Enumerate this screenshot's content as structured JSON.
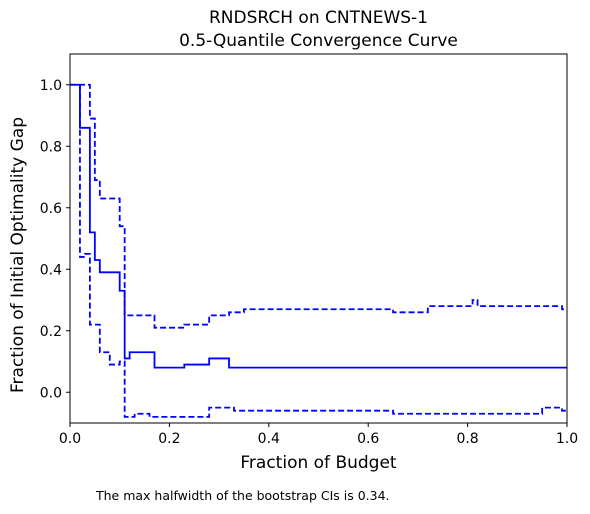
{
  "title_lines": [
    "RNDSRCH on CNTNEWS-1",
    "0.5-Quantile Convergence Curve"
  ],
  "footnote": "The max halfwidth of the bootstrap CIs is 0.34.",
  "colors": {
    "series": "#0000ff",
    "axis": "#000000",
    "background": "#ffffff"
  },
  "chart_data": {
    "type": "line",
    "title": "RNDSRCH on CNTNEWS-1\n0.5-Quantile Convergence Curve",
    "xlabel": "Fraction of Budget",
    "ylabel": "Fraction of Initial Optimality Gap",
    "xlim": [
      0,
      1
    ],
    "ylim": [
      -0.1,
      1.1
    ],
    "x_ticks": [
      0,
      0.2,
      0.4,
      0.6,
      0.8,
      1.0
    ],
    "x_tick_labels": [
      "0.0",
      "0.2",
      "0.4",
      "0.6",
      "0.8",
      "1.0"
    ],
    "y_ticks": [
      0,
      0.2,
      0.4,
      0.6,
      0.8,
      1.0
    ],
    "y_tick_labels": [
      "0.0",
      "0.2",
      "0.4",
      "0.6",
      "0.8",
      "1.0"
    ],
    "grid": false,
    "legend": "none",
    "series": [
      {
        "role": "estimate",
        "style": "solid",
        "step": true,
        "points": [
          [
            0,
            1.0
          ],
          [
            0.02,
            1.0
          ],
          [
            0.02,
            0.86
          ],
          [
            0.04,
            0.86
          ],
          [
            0.04,
            0.52
          ],
          [
            0.05,
            0.52
          ],
          [
            0.05,
            0.43
          ],
          [
            0.06,
            0.43
          ],
          [
            0.06,
            0.39
          ],
          [
            0.1,
            0.39
          ],
          [
            0.1,
            0.33
          ],
          [
            0.11,
            0.33
          ],
          [
            0.11,
            0.11
          ],
          [
            0.12,
            0.11
          ],
          [
            0.12,
            0.13
          ],
          [
            0.17,
            0.13
          ],
          [
            0.17,
            0.08
          ],
          [
            0.23,
            0.08
          ],
          [
            0.23,
            0.09
          ],
          [
            0.28,
            0.09
          ],
          [
            0.28,
            0.11
          ],
          [
            0.32,
            0.11
          ],
          [
            0.32,
            0.08
          ],
          [
            1.0,
            0.08
          ]
        ]
      },
      {
        "role": "upper_ci",
        "style": "dashed",
        "step": true,
        "points": [
          [
            0,
            1.0
          ],
          [
            0.04,
            1.0
          ],
          [
            0.04,
            0.89
          ],
          [
            0.05,
            0.89
          ],
          [
            0.05,
            0.69
          ],
          [
            0.06,
            0.69
          ],
          [
            0.06,
            0.63
          ],
          [
            0.1,
            0.63
          ],
          [
            0.1,
            0.54
          ],
          [
            0.11,
            0.54
          ],
          [
            0.11,
            0.25
          ],
          [
            0.17,
            0.25
          ],
          [
            0.17,
            0.21
          ],
          [
            0.23,
            0.21
          ],
          [
            0.23,
            0.22
          ],
          [
            0.28,
            0.22
          ],
          [
            0.28,
            0.25
          ],
          [
            0.32,
            0.25
          ],
          [
            0.32,
            0.26
          ],
          [
            0.35,
            0.26
          ],
          [
            0.35,
            0.27
          ],
          [
            0.65,
            0.27
          ],
          [
            0.65,
            0.26
          ],
          [
            0.72,
            0.26
          ],
          [
            0.72,
            0.28
          ],
          [
            0.81,
            0.28
          ],
          [
            0.81,
            0.3
          ],
          [
            0.82,
            0.3
          ],
          [
            0.82,
            0.28
          ],
          [
            0.99,
            0.28
          ],
          [
            0.99,
            0.27
          ],
          [
            1.0,
            0.27
          ]
        ]
      },
      {
        "role": "lower_ci",
        "style": "dashed",
        "step": true,
        "points": [
          [
            0.02,
            1.0
          ],
          [
            0.02,
            0.44
          ],
          [
            0.03,
            0.44
          ],
          [
            0.03,
            0.45
          ],
          [
            0.04,
            0.45
          ],
          [
            0.04,
            0.22
          ],
          [
            0.05,
            0.22
          ],
          [
            0.05,
            0.22
          ],
          [
            0.06,
            0.22
          ],
          [
            0.06,
            0.13
          ],
          [
            0.08,
            0.13
          ],
          [
            0.08,
            0.09
          ],
          [
            0.1,
            0.09
          ],
          [
            0.1,
            0.1
          ],
          [
            0.11,
            0.1
          ],
          [
            0.11,
            -0.08
          ],
          [
            0.13,
            -0.08
          ],
          [
            0.13,
            -0.07
          ],
          [
            0.16,
            -0.07
          ],
          [
            0.16,
            -0.08
          ],
          [
            0.28,
            -0.08
          ],
          [
            0.28,
            -0.05
          ],
          [
            0.33,
            -0.05
          ],
          [
            0.33,
            -0.06
          ],
          [
            0.65,
            -0.06
          ],
          [
            0.65,
            -0.07
          ],
          [
            0.95,
            -0.07
          ],
          [
            0.95,
            -0.05
          ],
          [
            0.99,
            -0.05
          ],
          [
            0.99,
            -0.06
          ],
          [
            1.0,
            -0.06
          ]
        ]
      }
    ]
  }
}
